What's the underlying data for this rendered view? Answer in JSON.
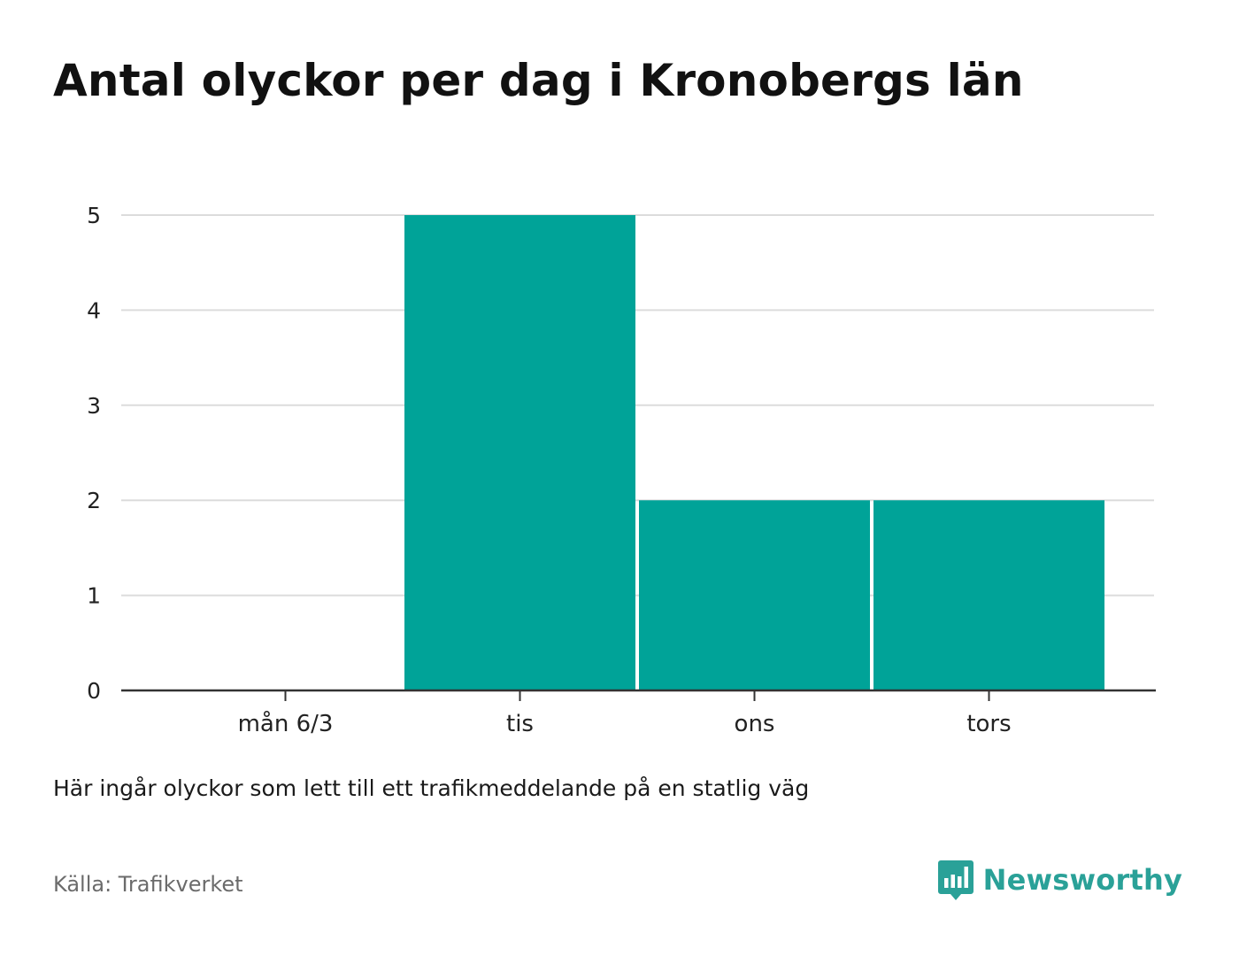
{
  "title": "Antal olyckor per dag i Kronobergs län",
  "note": "Här ingår olyckor som lett till ett trafikmeddelande på en statlig väg",
  "source": "Källa: Trafikverket",
  "brand": {
    "name": "Newsworthy",
    "logo_icon": "bar-chart-speech-bubble-icon",
    "color": "#2aa198"
  },
  "chart_data": {
    "type": "bar",
    "categories": [
      "mån 6/3",
      "tis",
      "ons",
      "tors"
    ],
    "values": [
      0,
      5,
      2,
      2
    ],
    "ylim": [
      0,
      5
    ],
    "yticks": [
      "0",
      "1",
      "2",
      "3",
      "4",
      "5"
    ],
    "xlabel": "",
    "ylabel": "",
    "grid": true,
    "bar_color": "#00a398"
  }
}
